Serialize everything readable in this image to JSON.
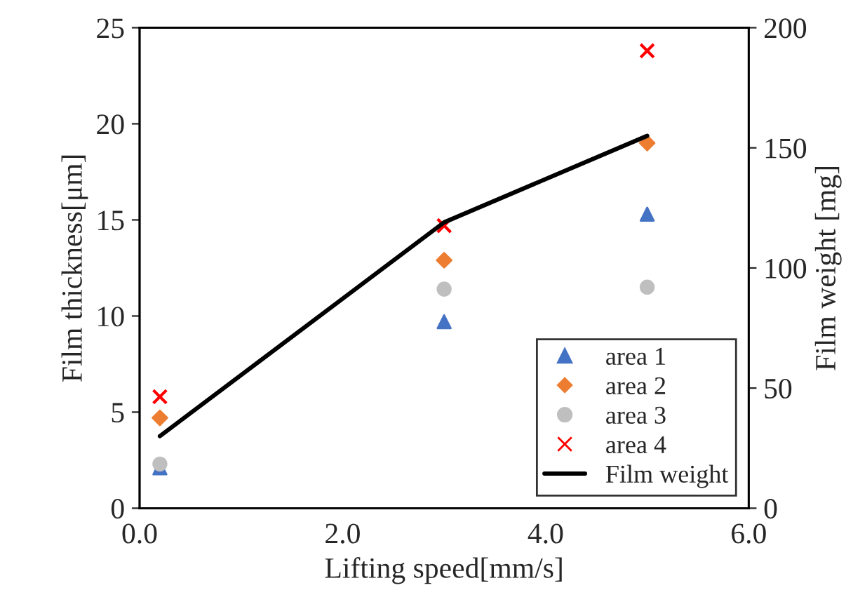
{
  "chart_data": {
    "type": "scatter",
    "xlabel": "Lifting speed[mm/s]",
    "ylabel": "Film thickness[μm]",
    "y2label": "Film weight [mg]",
    "x": [
      0.2,
      3,
      5
    ],
    "series": [
      {
        "name": "area 1",
        "color": "#4472c4",
        "marker": "triangle",
        "values": [
          2.1,
          9.7,
          15.3
        ]
      },
      {
        "name": "area 2",
        "color": "#ed7d31",
        "marker": "diamond",
        "values": [
          4.7,
          12.9,
          19.0
        ]
      },
      {
        "name": "area 3",
        "color": "#bfbfbf",
        "marker": "circle",
        "values": [
          2.3,
          11.4,
          11.5
        ]
      },
      {
        "name": "area 4",
        "color": "#ff0000",
        "marker": "cross",
        "values": [
          5.8,
          14.7,
          23.8
        ]
      },
      {
        "name": "Film weight",
        "type": "line",
        "axis": "y2",
        "color": "#000000",
        "marker": "none",
        "values": [
          30,
          119,
          155
        ]
      }
    ],
    "xlim": [
      0,
      6
    ],
    "xticks": [
      {
        "value": 0,
        "label": "0.0"
      },
      {
        "value": 2,
        "label": "2.0"
      },
      {
        "value": 4,
        "label": "4.0"
      },
      {
        "value": 6,
        "label": "6.0"
      }
    ],
    "ylim": [
      0,
      25
    ],
    "yticks": [
      0,
      5,
      10,
      15,
      20,
      25
    ],
    "y2lim": [
      0,
      200
    ],
    "y2ticks": [
      0,
      50,
      100,
      150,
      200
    ],
    "grid": false,
    "legend": "bottom right"
  }
}
